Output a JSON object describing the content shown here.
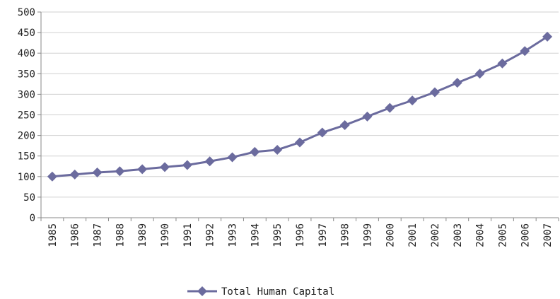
{
  "chart_data": {
    "type": "line",
    "categories": [
      "1985",
      "1986",
      "1987",
      "1988",
      "1989",
      "1990",
      "1991",
      "1992",
      "1993",
      "1994",
      "1995",
      "1996",
      "1997",
      "1998",
      "1999",
      "2000",
      "2001",
      "2002",
      "2003",
      "2004",
      "2005",
      "2006",
      "2007"
    ],
    "series": [
      {
        "name": "Total Human Capital",
        "color": "#6b6b9e",
        "values": [
          100,
          105,
          110,
          113,
          118,
          123,
          128,
          137,
          147,
          160,
          165,
          183,
          207,
          225,
          246,
          267,
          285,
          305,
          328,
          350,
          375,
          405,
          440
        ]
      }
    ],
    "ylim": [
      0,
      500
    ],
    "yticks": [
      0,
      50,
      100,
      150,
      200,
      250,
      300,
      350,
      400,
      450,
      500
    ],
    "grid": true,
    "legend": "bottom"
  }
}
